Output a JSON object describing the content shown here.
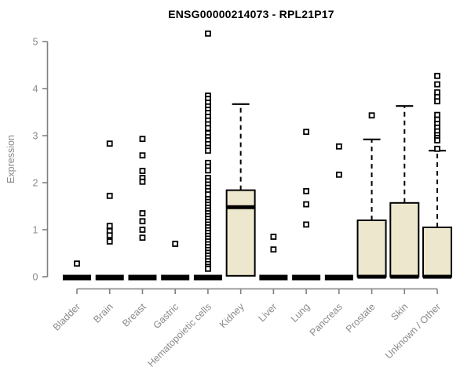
{
  "chart_data": {
    "type": "boxplot",
    "title": "ENSG00000214073 - RPL21P17",
    "ylabel": "Expression",
    "xlabel": "",
    "ylim": [
      0,
      5
    ],
    "yticks": [
      0,
      1,
      2,
      3,
      4,
      5
    ],
    "grid": false,
    "legend": "none",
    "categories": [
      "Bladder",
      "Brain",
      "Breast",
      "Gastric",
      "Hematopoietic cells",
      "Kidney",
      "Liver",
      "Lung",
      "Pancreas",
      "Prostate",
      "Skin",
      "Unknown / Other"
    ],
    "series": [
      {
        "name": "Bladder",
        "q1": 0,
        "median": 0,
        "q3": 0,
        "whisker_low": 0,
        "whisker_high": 0,
        "outliers": [
          0.28
        ]
      },
      {
        "name": "Brain",
        "q1": 0,
        "median": 0,
        "q3": 0,
        "whisker_low": 0,
        "whisker_high": 0,
        "outliers": [
          2.83,
          1.72,
          1.08,
          0.97,
          0.88,
          0.75
        ]
      },
      {
        "name": "Breast",
        "q1": 0,
        "median": 0,
        "q3": 0,
        "whisker_low": 0,
        "whisker_high": 0,
        "outliers": [
          2.93,
          2.58,
          2.25,
          2.1,
          2.02,
          1.35,
          1.18,
          1.0,
          0.83
        ]
      },
      {
        "name": "Gastric",
        "q1": 0,
        "median": 0,
        "q3": 0,
        "whisker_low": 0,
        "whisker_high": 0,
        "outliers": [
          0.7
        ]
      },
      {
        "name": "Hematopoietic cells",
        "q1": 0,
        "median": 0,
        "q3": 0,
        "whisker_low": 0,
        "whisker_high": 0,
        "outliers": [
          5.17,
          3.85,
          3.78,
          3.7,
          3.62,
          3.55,
          3.48,
          3.4,
          3.32,
          3.24,
          3.16,
          3.05,
          2.97,
          2.9,
          2.82,
          2.74,
          2.68,
          2.42,
          2.34,
          2.26,
          2.1,
          2.03,
          1.96,
          1.89,
          1.82,
          1.75,
          1.65,
          1.59,
          1.53,
          1.47,
          1.41,
          1.35,
          1.29,
          1.23,
          1.17,
          1.11,
          1.05,
          0.99,
          0.93,
          0.87,
          0.81,
          0.75,
          0.69,
          0.63,
          0.57,
          0.51,
          0.45,
          0.39,
          0.33,
          0.27,
          0.21,
          0.17
        ]
      },
      {
        "name": "Kidney",
        "q1": 0.02,
        "median": 1.48,
        "q3": 1.84,
        "whisker_low": 0,
        "whisker_high": 3.67,
        "outliers": []
      },
      {
        "name": "Liver",
        "q1": 0,
        "median": 0,
        "q3": 0,
        "whisker_low": 0,
        "whisker_high": 0,
        "outliers": [
          0.85,
          0.58
        ]
      },
      {
        "name": "Lung",
        "q1": 0,
        "median": 0,
        "q3": 0,
        "whisker_low": 0,
        "whisker_high": 0,
        "outliers": [
          3.08,
          1.82,
          1.54,
          1.11
        ]
      },
      {
        "name": "Pancreas",
        "q1": 0,
        "median": 0,
        "q3": 0,
        "whisker_low": 0,
        "whisker_high": 0,
        "outliers": [
          2.77,
          2.17
        ]
      },
      {
        "name": "Prostate",
        "q1": 0,
        "median": 0,
        "q3": 1.2,
        "whisker_low": 0,
        "whisker_high": 2.92,
        "outliers": [
          3.43
        ]
      },
      {
        "name": "Skin",
        "q1": 0,
        "median": 0,
        "q3": 1.57,
        "whisker_low": 0,
        "whisker_high": 3.63,
        "outliers": []
      },
      {
        "name": "Unknown / Other",
        "q1": 0,
        "median": 0,
        "q3": 1.05,
        "whisker_low": 0,
        "whisker_high": 2.68,
        "outliers": [
          4.27,
          4.09,
          3.92,
          3.82,
          3.73,
          3.44,
          3.34,
          3.25,
          3.17,
          3.09,
          3.01,
          2.95,
          2.9,
          2.72
        ]
      }
    ],
    "colors": {
      "box_fill": "#EDE8CD",
      "box_stroke": "#000000",
      "median": "#000000",
      "whisker": "#000000",
      "outlier_fill": "#FFFFFF",
      "outlier_stroke": "#000000",
      "axis": "#808080",
      "tick_label": "#8A8A8A",
      "title": "#000000",
      "background": "#FFFFFF"
    }
  }
}
